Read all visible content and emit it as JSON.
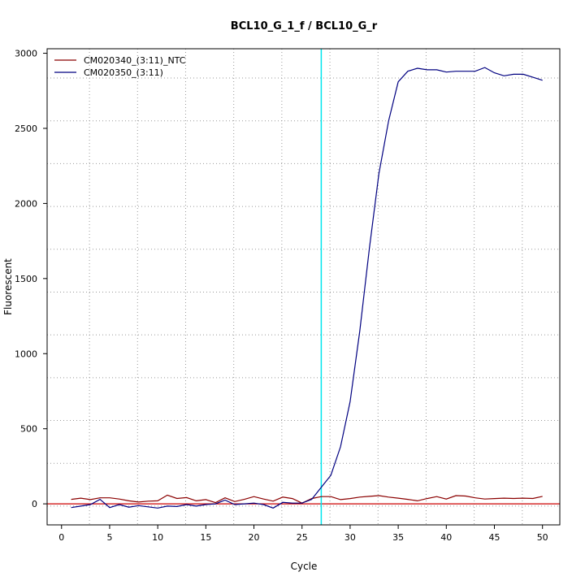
{
  "chart_data": {
    "type": "line",
    "title": "BCL10_G_1_f / BCL10_G_r",
    "xlabel": "Cycle",
    "ylabel": "Fluorescent",
    "xlim": [
      -1.5,
      51.8
    ],
    "ylim": [
      -140,
      3030
    ],
    "x_ticks": [
      "0",
      "5",
      "10",
      "15",
      "20",
      "25",
      "30",
      "35",
      "40",
      "45",
      "50"
    ],
    "y_ticks": [
      "0",
      "500",
      "1000",
      "1500",
      "2000",
      "2500",
      "3000"
    ],
    "grid": true,
    "threshold_y": 0,
    "threshold_color": "#cc0000",
    "cycle_marker_x": 27,
    "cycle_marker_color": "#00e5ee",
    "legend_position": "top-left",
    "x": [
      1,
      2,
      3,
      4,
      5,
      6,
      7,
      8,
      9,
      10,
      11,
      12,
      13,
      14,
      15,
      16,
      17,
      18,
      19,
      20,
      21,
      22,
      23,
      24,
      25,
      26,
      27,
      28,
      29,
      30,
      31,
      32,
      33,
      34,
      35,
      36,
      37,
      38,
      39,
      40,
      41,
      42,
      43,
      44,
      45,
      46,
      47,
      48,
      49,
      50
    ],
    "series": [
      {
        "name": "CM020340_(3:11)_NTC",
        "color": "#8b0000",
        "values": [
          30,
          38,
          28,
          40,
          40,
          32,
          20,
          12,
          18,
          20,
          58,
          36,
          42,
          20,
          28,
          8,
          40,
          15,
          30,
          48,
          32,
          18,
          45,
          35,
          5,
          35,
          48,
          48,
          28,
          35,
          45,
          50,
          55,
          45,
          38,
          30,
          20,
          35,
          48,
          32,
          55,
          52,
          40,
          32,
          35,
          38,
          36,
          38,
          36,
          50
        ]
      },
      {
        "name": "CM020350_(3:11)",
        "color": "#000080",
        "values": [
          -25,
          -15,
          -5,
          30,
          -25,
          -5,
          -22,
          -12,
          -20,
          -28,
          -15,
          -18,
          -5,
          -15,
          -5,
          0,
          25,
          -5,
          0,
          5,
          -5,
          -28,
          10,
          5,
          5,
          30,
          110,
          190,
          380,
          680,
          1150,
          1700,
          2200,
          2550,
          2810,
          2880,
          2900,
          2890,
          2890,
          2875,
          2880,
          2880,
          2880,
          2905,
          2870,
          2850,
          2860,
          2860,
          2840,
          2820
        ]
      }
    ]
  }
}
